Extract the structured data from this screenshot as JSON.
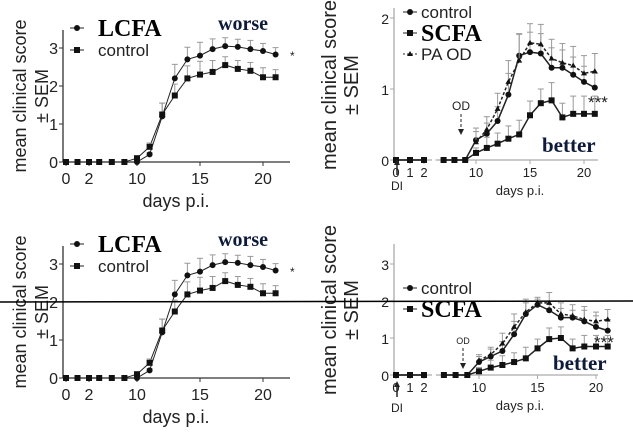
{
  "chart_data": [
    {
      "type": "line",
      "ylabel": "mean clinical score",
      "ylabel2": "± SEM",
      "xlabel": "days p.i.",
      "yticks": [
        0,
        1,
        2,
        3
      ],
      "xticks": [
        0,
        2,
        10,
        15,
        20
      ],
      "ylim": [
        0,
        3.5
      ],
      "legend": [
        "LCFA",
        "control"
      ],
      "annotation": "worse",
      "significance": "*",
      "series": [
        {
          "name": "LCFA",
          "marker": "circle",
          "x": [
            0,
            1,
            2,
            7,
            8,
            9,
            10,
            11,
            12,
            13,
            14,
            15,
            16,
            17,
            18,
            19,
            20,
            21
          ],
          "y": [
            0,
            0,
            0,
            0,
            0,
            0,
            0,
            0.2,
            1.2,
            2.2,
            2.7,
            2.8,
            2.97,
            3.05,
            3.03,
            2.97,
            2.92,
            2.83
          ],
          "sem": [
            0,
            0,
            0,
            0,
            0,
            0,
            0,
            0.05,
            0.35,
            0.37,
            0.32,
            0.35,
            0.27,
            0.22,
            0.2,
            0.23,
            0.2,
            0.18
          ]
        },
        {
          "name": "control",
          "marker": "square",
          "x": [
            0,
            1,
            2,
            7,
            8,
            9,
            10,
            11,
            12,
            13,
            14,
            15,
            16,
            17,
            18,
            19,
            20,
            21
          ],
          "y": [
            0,
            0,
            0,
            0,
            0,
            0,
            0.1,
            0.4,
            1.25,
            1.75,
            2.2,
            2.3,
            2.37,
            2.55,
            2.45,
            2.4,
            2.23,
            2.23
          ],
          "sem": [
            0,
            0,
            0,
            0,
            0,
            0,
            0.05,
            0.1,
            0.3,
            0.3,
            0.33,
            0.35,
            0.3,
            0.22,
            0.22,
            0.22,
            0.25,
            0.2
          ]
        }
      ]
    },
    {
      "type": "line",
      "ylabel": "mean clinical score",
      "ylabel2": "± SEM",
      "xlabel": "days p.i.",
      "yticks": [
        0,
        1,
        2
      ],
      "xticks": [
        0,
        1,
        2,
        10,
        15,
        20
      ],
      "ylim": [
        0,
        2
      ],
      "legend": [
        "control",
        "SCFA",
        "PA OD"
      ],
      "annotation": "better",
      "significance": "***",
      "arrow_od": "OD",
      "arrow_di": "DI",
      "series": [
        {
          "name": "control",
          "marker": "circle",
          "x": [
            0,
            1,
            2,
            7,
            8,
            9,
            10,
            11,
            12,
            13,
            14,
            15,
            16,
            17,
            18,
            19,
            20,
            21
          ],
          "y": [
            0,
            0,
            0,
            0,
            0,
            0,
            0.28,
            0.37,
            0.55,
            0.92,
            1.47,
            1.52,
            1.5,
            1.3,
            1.3,
            1.2,
            1.1,
            1.02
          ],
          "sem": [
            0,
            0,
            0,
            0,
            0,
            0,
            0.12,
            0.15,
            0.2,
            0.3,
            0.3,
            0.28,
            0.28,
            0.28,
            0.25,
            0.25,
            0.22,
            0.2
          ]
        },
        {
          "name": "SCFA",
          "marker": "square",
          "x": [
            0,
            1,
            2,
            7,
            8,
            9,
            10,
            11,
            12,
            13,
            14,
            15,
            16,
            17,
            18,
            19,
            20,
            21
          ],
          "y": [
            0,
            0,
            0,
            0,
            0,
            0,
            0.1,
            0.17,
            0.23,
            0.3,
            0.36,
            0.63,
            0.8,
            0.84,
            0.6,
            0.65,
            0.65,
            0.65
          ],
          "sem": [
            0,
            0,
            0,
            0,
            0,
            0,
            0.07,
            0.15,
            0.15,
            0.18,
            0.2,
            0.2,
            0.2,
            0.25,
            0.2,
            0.25,
            0.25,
            0.25
          ]
        },
        {
          "name": "PA OD",
          "marker": "triangle",
          "dashed": true,
          "x": [
            10,
            11,
            12,
            13,
            14,
            15,
            16,
            17,
            18,
            19,
            20,
            21
          ],
          "y": [
            0.25,
            0.43,
            0.72,
            1.1,
            1.4,
            1.65,
            1.63,
            1.43,
            1.37,
            1.33,
            1.22,
            1.25
          ],
          "sem": [
            0.2,
            0.18,
            0.22,
            0.3,
            0.38,
            0.27,
            0.28,
            0.27,
            0.27,
            0.27,
            0.25,
            0.25
          ]
        }
      ]
    },
    {
      "type": "line",
      "ylabel": "mean clinical score",
      "ylabel2": "± SEM",
      "xlabel": "days p.i.",
      "yticks": [
        0,
        1,
        2,
        3
      ],
      "xticks": [
        0,
        2,
        10,
        15,
        20
      ],
      "ylim": [
        0,
        3.5
      ],
      "legend": [
        "LCFA",
        "control"
      ],
      "annotation": "worse",
      "significance": "*",
      "reference_line": 2,
      "series": [
        {
          "name": "LCFA",
          "marker": "circle",
          "x": [
            0,
            1,
            2,
            7,
            8,
            9,
            10,
            11,
            12,
            13,
            14,
            15,
            16,
            17,
            18,
            19,
            20,
            21
          ],
          "y": [
            0,
            0,
            0,
            0,
            0,
            0,
            0,
            0.2,
            1.2,
            2.2,
            2.7,
            2.8,
            2.97,
            3.05,
            3.03,
            2.97,
            2.92,
            2.83
          ],
          "sem": [
            0,
            0,
            0,
            0,
            0,
            0,
            0,
            0.05,
            0.35,
            0.37,
            0.32,
            0.35,
            0.27,
            0.22,
            0.2,
            0.23,
            0.2,
            0.18
          ]
        },
        {
          "name": "control",
          "marker": "square",
          "x": [
            0,
            1,
            2,
            7,
            8,
            9,
            10,
            11,
            12,
            13,
            14,
            15,
            16,
            17,
            18,
            19,
            20,
            21
          ],
          "y": [
            0,
            0,
            0,
            0,
            0,
            0,
            0.1,
            0.4,
            1.25,
            1.75,
            2.2,
            2.3,
            2.37,
            2.55,
            2.45,
            2.4,
            2.23,
            2.23
          ],
          "sem": [
            0,
            0,
            0,
            0,
            0,
            0,
            0.05,
            0.1,
            0.3,
            0.3,
            0.33,
            0.35,
            0.3,
            0.22,
            0.22,
            0.22,
            0.25,
            0.2
          ]
        }
      ]
    },
    {
      "type": "line",
      "ylabel": "mean clinical score",
      "ylabel2": "± SEM",
      "xlabel": "days p.i.",
      "yticks": [
        0,
        1,
        2,
        3
      ],
      "xticks": [
        0,
        1,
        2,
        10,
        15,
        20
      ],
      "ylim": [
        0,
        3.5
      ],
      "legend": [
        "control",
        "SCFA"
      ],
      "annotation": "better",
      "significance": "***",
      "arrow_od": "OD",
      "arrow_di": "DI",
      "reference_line": 2,
      "series": [
        {
          "name": "control",
          "marker": "circle",
          "x": [
            0,
            1,
            2,
            7,
            8,
            9,
            10,
            11,
            12,
            13,
            14,
            15,
            16,
            17,
            18,
            19,
            20,
            21
          ],
          "y": [
            0,
            0,
            0,
            0,
            0,
            0,
            0.35,
            0.5,
            0.65,
            1.1,
            1.65,
            1.9,
            1.75,
            1.55,
            1.55,
            1.45,
            1.3,
            1.2
          ],
          "sem": [
            0,
            0,
            0,
            0,
            0,
            0,
            0.15,
            0.2,
            0.25,
            0.35,
            0.3,
            0.15,
            0.25,
            0.25,
            0.2,
            0.3,
            0.3,
            0.3
          ]
        },
        {
          "name": "SCFA",
          "marker": "square",
          "x": [
            0,
            1,
            2,
            7,
            8,
            9,
            10,
            11,
            12,
            13,
            14,
            15,
            16,
            17,
            18,
            19,
            20,
            21
          ],
          "y": [
            0,
            0,
            0,
            0,
            0,
            0,
            0.1,
            0.2,
            0.27,
            0.35,
            0.45,
            0.72,
            0.97,
            1.0,
            0.72,
            0.77,
            0.77,
            0.77
          ],
          "sem": [
            0,
            0,
            0,
            0,
            0,
            0,
            0.1,
            0.2,
            0.25,
            0.25,
            0.3,
            0.25,
            0.3,
            0.3,
            0.25,
            0.3,
            0.3,
            0.3
          ]
        },
        {
          "name": "PA OD",
          "marker": "triangle",
          "dashed": true,
          "x": [
            10,
            11,
            12,
            13,
            14,
            15,
            16,
            17,
            18,
            19,
            20,
            21
          ],
          "y": [
            0.4,
            0.55,
            0.85,
            1.3,
            1.7,
            1.95,
            1.95,
            1.65,
            1.6,
            1.5,
            1.45,
            1.5
          ],
          "sem": [
            0.15,
            0.2,
            0.28,
            0.35,
            0.35,
            0.15,
            0.28,
            0.3,
            0.3,
            0.35,
            0.25,
            0.27
          ]
        }
      ]
    }
  ]
}
